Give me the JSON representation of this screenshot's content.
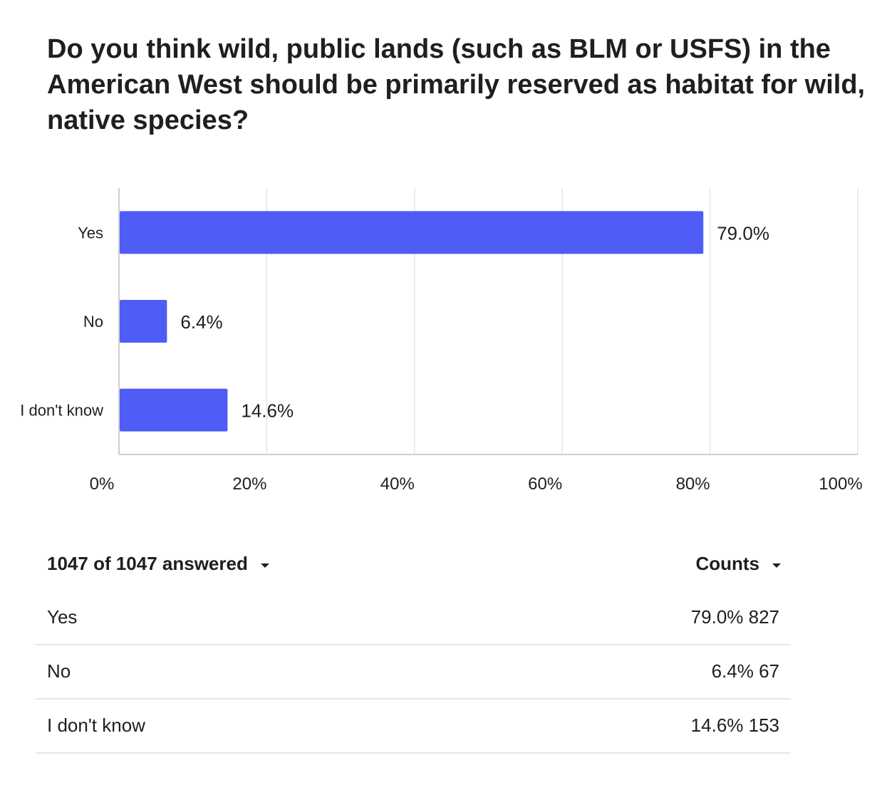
{
  "question": "Do you think wild, public lands (such as BLM or USFS) in the American West should be primarily reserved as habitat for wild, native species?",
  "colors": {
    "bar": "#4f5cf6",
    "grid": "#e4e4e4",
    "axis": "#cfcfcf",
    "divider": "#e6e6e6"
  },
  "chart_data": {
    "type": "bar",
    "orientation": "horizontal",
    "categories": [
      "Yes",
      "No",
      "I don't know"
    ],
    "values": [
      79.0,
      6.4,
      14.6
    ],
    "value_labels": [
      "79.0%",
      "6.4%",
      "14.6%"
    ],
    "xlim": [
      0,
      100
    ],
    "x_ticks": [
      "0%",
      "20%",
      "40%",
      "60%",
      "80%",
      "100%"
    ],
    "grid": true
  },
  "table": {
    "answered_label": "1047 of 1047 answered",
    "counts_label": "Counts",
    "rows": [
      {
        "label": "Yes",
        "value": "79.0% 827"
      },
      {
        "label": "No",
        "value": "6.4% 67"
      },
      {
        "label": "I don't know",
        "value": "14.6% 153"
      }
    ]
  }
}
